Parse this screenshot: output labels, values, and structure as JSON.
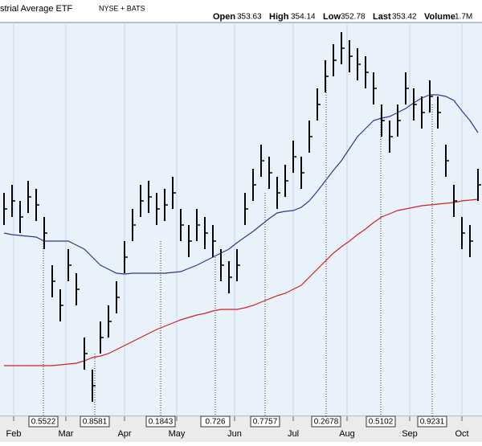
{
  "chart_data": {
    "type": "ohlc",
    "title": "strial Average ETF",
    "exchange": "NYSE + BATS",
    "quote": [
      {
        "label": "Open",
        "value": 353.63
      },
      {
        "label": "High",
        "value": 354.14
      },
      {
        "label": "Low",
        "value": 352.78
      },
      {
        "label": "Last",
        "value": 353.42
      },
      {
        "label": "Volume",
        "value": "1.7M"
      }
    ],
    "ylim": [
      310,
      360
    ],
    "months": [
      "Feb",
      "Mar",
      "Apr",
      "May",
      "Jun",
      "Jul",
      "Aug",
      "Sep",
      "Oct"
    ],
    "high": [
      338,
      339,
      337,
      339.5,
      338.5,
      335,
      329,
      326,
      331,
      328,
      320,
      316,
      322,
      324,
      327,
      332,
      336,
      339,
      339.5,
      338,
      338.5,
      340,
      336,
      334,
      336,
      335,
      334,
      331,
      329.5,
      331,
      338,
      341,
      344,
      342.5,
      340,
      341.5,
      344.5,
      342.5,
      347,
      351,
      354.5,
      356.5,
      358,
      357,
      356,
      355,
      353,
      349,
      347,
      349,
      353,
      351,
      350,
      352,
      350,
      344,
      339,
      335,
      334,
      341
    ],
    "low": [
      334,
      335,
      333,
      335.5,
      334.5,
      331,
      325,
      322,
      327,
      324,
      316,
      312,
      318,
      320,
      323,
      328,
      332,
      335,
      335.5,
      334,
      334.5,
      336,
      332,
      330,
      332,
      331,
      330,
      327,
      325.5,
      327,
      334,
      337,
      340,
      338.5,
      336,
      337.5,
      340.5,
      338.5,
      343,
      347,
      350.5,
      352.5,
      354,
      353,
      352,
      351,
      349,
      345,
      343,
      345,
      349,
      347,
      346,
      348,
      346,
      340,
      335,
      331,
      330,
      337
    ],
    "close": [
      336,
      337,
      335,
      337.5,
      336.5,
      333,
      327,
      324,
      329,
      326,
      318,
      314,
      320,
      322,
      325,
      330,
      334,
      337,
      337.5,
      336,
      336.5,
      338,
      334,
      332,
      334,
      333,
      332,
      329,
      327.5,
      329,
      336,
      339,
      342,
      340.5,
      338,
      339.5,
      342.5,
      340.5,
      345,
      349,
      352.5,
      354.5,
      356,
      355,
      354,
      353,
      351,
      347,
      345,
      347,
      351,
      349,
      348,
      350,
      348,
      342,
      337,
      333,
      332,
      339
    ],
    "series": [
      {
        "color": "#2b3a8c",
        "values": [
          333,
          332.8,
          332.7,
          332.6,
          332.5,
          332,
          332,
          332,
          332,
          331.5,
          331,
          330,
          329,
          328.5,
          328,
          327.9,
          328,
          328,
          328,
          328,
          328,
          328.1,
          328.2,
          328.6,
          329,
          329.5,
          330,
          330.5,
          331,
          331.8,
          332.5,
          333.2,
          334,
          334.8,
          335.5,
          335.7,
          335.8,
          336.2,
          337,
          338.2,
          339.5,
          340.8,
          342,
          343.5,
          345,
          346,
          347,
          347.3,
          347.5,
          348,
          348.5,
          349.2,
          349.8,
          350.2,
          350.2,
          350,
          349.5,
          348.2,
          347,
          345.5
        ]
      },
      {
        "color": "#d42020",
        "values": [
          316.5,
          316.5,
          316.5,
          316.5,
          316.5,
          316.5,
          316.5,
          316.6,
          316.7,
          316.8,
          317.1,
          317.5,
          317.7,
          318,
          318.5,
          319,
          319.5,
          320,
          320.5,
          321,
          321.4,
          321.8,
          322.2,
          322.5,
          322.8,
          323,
          323.3,
          323.5,
          323.5,
          323.5,
          323.7,
          324,
          324.4,
          324.8,
          325.2,
          325.5,
          326,
          326.5,
          327.5,
          328.5,
          329.5,
          330.5,
          331.3,
          332,
          332.8,
          333.5,
          334.3,
          335,
          335.4,
          335.8,
          336,
          336.2,
          336.4,
          336.5,
          336.6,
          336.7,
          336.8,
          337,
          337.1,
          337.2
        ]
      }
    ],
    "dividends": [
      0.5522,
      0.8581,
      0.1843,
      0.726,
      0.7757,
      0.2678,
      0.5102,
      0.9231
    ]
  }
}
